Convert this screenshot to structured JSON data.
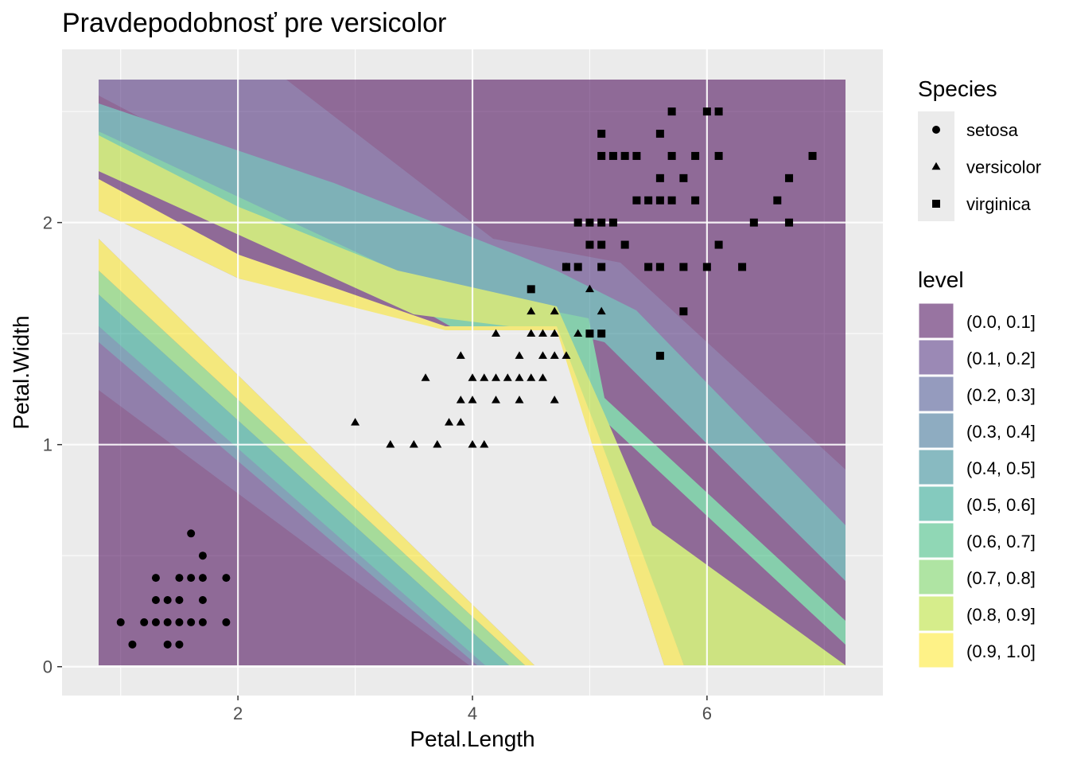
{
  "chart_data": {
    "type": "scatter",
    "title": "Pravdepodobnosť pre versicolor",
    "xlabel": "Petal.Length",
    "ylabel": "Petal.Width",
    "xlim": [
      0.5,
      7.5
    ],
    "ylim": [
      -0.13,
      2.78
    ],
    "x_ticks": [
      2,
      4,
      6
    ],
    "y_ticks": [
      0,
      1,
      2
    ],
    "grid": true,
    "legend_position": "right",
    "species_legend": {
      "title": "Species",
      "entries": [
        {
          "label": "setosa",
          "shape": "circle"
        },
        {
          "label": "versicolor",
          "shape": "triangle"
        },
        {
          "label": "virginica",
          "shape": "square"
        }
      ]
    },
    "level_legend": {
      "title": "level",
      "entries": [
        {
          "label": "(0.0, 0.1]",
          "color": "#440154"
        },
        {
          "label": "(0.1, 0.2]",
          "color": "#482878"
        },
        {
          "label": "(0.2, 0.3]",
          "color": "#3e4989"
        },
        {
          "label": "(0.3, 0.4]",
          "color": "#31688e"
        },
        {
          "label": "(0.4, 0.5]",
          "color": "#26828e"
        },
        {
          "label": "(0.5, 0.6]",
          "color": "#1f9e89"
        },
        {
          "label": "(0.6, 0.7]",
          "color": "#35b779"
        },
        {
          "label": "(0.7, 0.8]",
          "color": "#6ece58"
        },
        {
          "label": "(0.8, 0.9]",
          "color": "#b5de2b"
        },
        {
          "label": "(0.9, 1.0]",
          "color": "#fde725"
        }
      ]
    },
    "series": [
      {
        "name": "setosa",
        "points": [
          [
            1.0,
            0.2
          ],
          [
            1.1,
            0.1
          ],
          [
            1.2,
            0.2
          ],
          [
            1.3,
            0.2
          ],
          [
            1.3,
            0.3
          ],
          [
            1.3,
            0.4
          ],
          [
            1.4,
            0.1
          ],
          [
            1.4,
            0.2
          ],
          [
            1.4,
            0.3
          ],
          [
            1.5,
            0.1
          ],
          [
            1.5,
            0.2
          ],
          [
            1.5,
            0.3
          ],
          [
            1.5,
            0.4
          ],
          [
            1.6,
            0.2
          ],
          [
            1.6,
            0.4
          ],
          [
            1.6,
            0.6
          ],
          [
            1.7,
            0.2
          ],
          [
            1.7,
            0.3
          ],
          [
            1.7,
            0.4
          ],
          [
            1.7,
            0.5
          ],
          [
            1.9,
            0.2
          ],
          [
            1.9,
            0.4
          ]
        ]
      },
      {
        "name": "versicolor",
        "points": [
          [
            3.0,
            1.1
          ],
          [
            3.3,
            1.0
          ],
          [
            3.5,
            1.0
          ],
          [
            3.6,
            1.3
          ],
          [
            3.7,
            1.0
          ],
          [
            3.8,
            1.1
          ],
          [
            3.9,
            1.1
          ],
          [
            3.9,
            1.2
          ],
          [
            3.9,
            1.4
          ],
          [
            4.0,
            1.0
          ],
          [
            4.0,
            1.2
          ],
          [
            4.0,
            1.3
          ],
          [
            4.1,
            1.0
          ],
          [
            4.1,
            1.3
          ],
          [
            4.2,
            1.2
          ],
          [
            4.2,
            1.3
          ],
          [
            4.2,
            1.5
          ],
          [
            4.3,
            1.3
          ],
          [
            4.4,
            1.2
          ],
          [
            4.4,
            1.3
          ],
          [
            4.4,
            1.4
          ],
          [
            4.5,
            1.3
          ],
          [
            4.5,
            1.5
          ],
          [
            4.5,
            1.6
          ],
          [
            4.6,
            1.3
          ],
          [
            4.6,
            1.4
          ],
          [
            4.6,
            1.5
          ],
          [
            4.7,
            1.2
          ],
          [
            4.7,
            1.4
          ],
          [
            4.7,
            1.5
          ],
          [
            4.7,
            1.6
          ],
          [
            4.8,
            1.4
          ],
          [
            4.8,
            1.8
          ],
          [
            4.9,
            1.5
          ],
          [
            5.0,
            1.7
          ],
          [
            5.1,
            1.6
          ]
        ]
      },
      {
        "name": "virginica",
        "points": [
          [
            4.5,
            1.7
          ],
          [
            4.8,
            1.8
          ],
          [
            4.9,
            1.8
          ],
          [
            4.9,
            2.0
          ],
          [
            5.0,
            1.5
          ],
          [
            5.0,
            1.9
          ],
          [
            5.0,
            2.0
          ],
          [
            5.1,
            1.5
          ],
          [
            5.1,
            1.8
          ],
          [
            5.1,
            1.9
          ],
          [
            5.1,
            2.0
          ],
          [
            5.1,
            2.3
          ],
          [
            5.1,
            2.4
          ],
          [
            5.2,
            2.0
          ],
          [
            5.2,
            2.3
          ],
          [
            5.3,
            1.9
          ],
          [
            5.3,
            2.3
          ],
          [
            5.4,
            2.1
          ],
          [
            5.4,
            2.3
          ],
          [
            5.5,
            1.8
          ],
          [
            5.5,
            2.1
          ],
          [
            5.6,
            1.4
          ],
          [
            5.6,
            1.8
          ],
          [
            5.6,
            2.1
          ],
          [
            5.6,
            2.2
          ],
          [
            5.6,
            2.4
          ],
          [
            5.7,
            2.1
          ],
          [
            5.7,
            2.3
          ],
          [
            5.7,
            2.5
          ],
          [
            5.8,
            1.6
          ],
          [
            5.8,
            1.8
          ],
          [
            5.8,
            2.2
          ],
          [
            5.9,
            2.1
          ],
          [
            5.9,
            2.3
          ],
          [
            6.0,
            1.8
          ],
          [
            6.0,
            2.5
          ],
          [
            6.1,
            1.9
          ],
          [
            6.1,
            2.3
          ],
          [
            6.1,
            2.5
          ],
          [
            6.3,
            1.8
          ],
          [
            6.4,
            2.0
          ],
          [
            6.6,
            2.1
          ],
          [
            6.7,
            2.0
          ],
          [
            6.7,
            2.2
          ],
          [
            6.9,
            2.3
          ]
        ]
      }
    ]
  }
}
